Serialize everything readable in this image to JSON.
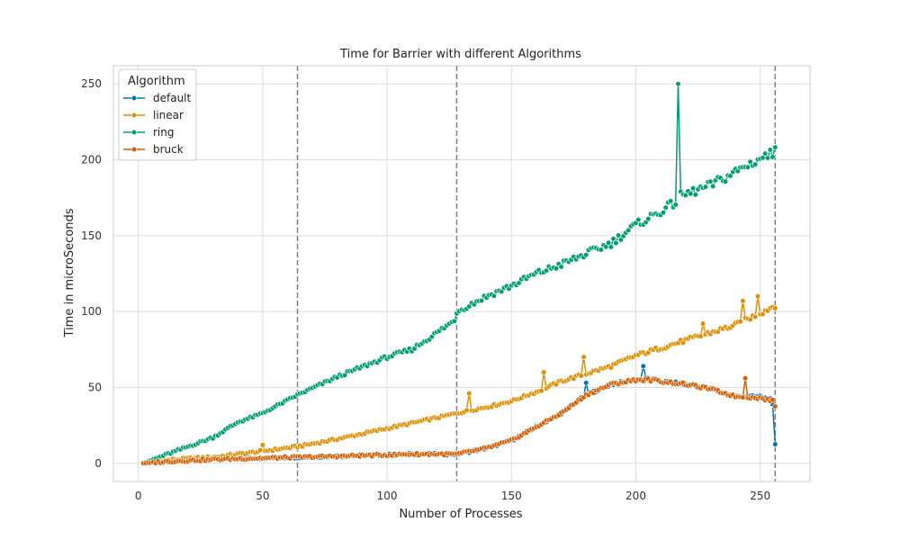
{
  "chart_data": {
    "type": "line",
    "title": "Time for Barrier with different Algorithms",
    "xlabel": "Number of Processes",
    "ylabel": "Time in microSeconds",
    "xlim": [
      -10,
      270
    ],
    "ylim": [
      -12,
      262
    ],
    "xticks": [
      0,
      50,
      100,
      150,
      200,
      250
    ],
    "yticks": [
      0,
      50,
      100,
      150,
      200,
      250
    ],
    "grid": true,
    "legend": {
      "title": "Algorithm",
      "placement": "top-left"
    },
    "vlines": {
      "x": [
        64,
        128,
        256
      ],
      "style": "dashed",
      "color": "#808080"
    },
    "x_range": [
      2,
      256
    ],
    "series": [
      {
        "name": "default",
        "color": "#0173b2",
        "anchors": [
          [
            2,
            0
          ],
          [
            10,
            1
          ],
          [
            30,
            2.5
          ],
          [
            64,
            4
          ],
          [
            100,
            5.5
          ],
          [
            110,
            6
          ],
          [
            128,
            6
          ],
          [
            140,
            10
          ],
          [
            150,
            15
          ],
          [
            160,
            24
          ],
          [
            170,
            33
          ],
          [
            180,
            45
          ],
          [
            190,
            52
          ],
          [
            200,
            55
          ],
          [
            205,
            56
          ],
          [
            210,
            54
          ],
          [
            220,
            52
          ],
          [
            230,
            49
          ],
          [
            240,
            44
          ],
          [
            250,
            44
          ],
          [
            254,
            42
          ],
          [
            255,
            38
          ],
          [
            256,
            12
          ]
        ],
        "spikes": [
          [
            180,
            53
          ],
          [
            203,
            64
          ]
        ]
      },
      {
        "name": "linear",
        "color": "#de8f05",
        "anchors": [
          [
            2,
            0
          ],
          [
            10,
            2
          ],
          [
            30,
            4
          ],
          [
            50,
            8
          ],
          [
            64,
            11
          ],
          [
            80,
            16
          ],
          [
            100,
            23
          ],
          [
            120,
            30
          ],
          [
            128,
            33
          ],
          [
            140,
            37
          ],
          [
            150,
            41
          ],
          [
            160,
            47
          ],
          [
            170,
            54
          ],
          [
            180,
            59
          ],
          [
            190,
            64
          ],
          [
            200,
            71
          ],
          [
            210,
            76
          ],
          [
            220,
            81
          ],
          [
            230,
            86
          ],
          [
            240,
            91
          ],
          [
            250,
            99
          ],
          [
            256,
            104
          ]
        ],
        "spikes": [
          [
            50,
            12
          ],
          [
            133,
            46
          ],
          [
            163,
            60
          ],
          [
            179,
            70
          ],
          [
            227,
            92
          ],
          [
            243,
            107
          ],
          [
            249,
            110
          ]
        ]
      },
      {
        "name": "ring",
        "color": "#029e73",
        "anchors": [
          [
            2,
            0
          ],
          [
            10,
            5
          ],
          [
            30,
            17
          ],
          [
            40,
            27
          ],
          [
            50,
            33
          ],
          [
            64,
            45
          ],
          [
            80,
            57
          ],
          [
            100,
            70
          ],
          [
            110,
            75
          ],
          [
            120,
            86
          ],
          [
            127,
            94
          ],
          [
            128,
            100
          ],
          [
            140,
            110
          ],
          [
            150,
            117
          ],
          [
            160,
            125
          ],
          [
            170,
            131
          ],
          [
            180,
            138
          ],
          [
            190,
            145
          ],
          [
            200,
            157
          ],
          [
            210,
            166
          ],
          [
            216,
            172
          ],
          [
            218,
            176
          ],
          [
            230,
            183
          ],
          [
            240,
            192
          ],
          [
            250,
            201
          ],
          [
            255,
            204
          ],
          [
            256,
            210
          ]
        ],
        "spikes": [
          [
            217,
            250
          ]
        ]
      },
      {
        "name": "bruck",
        "color": "#d55e00",
        "anchors": [
          [
            2,
            0
          ],
          [
            10,
            1
          ],
          [
            30,
            2.5
          ],
          [
            64,
            4
          ],
          [
            100,
            5.5
          ],
          [
            110,
            6
          ],
          [
            128,
            6
          ],
          [
            140,
            10
          ],
          [
            150,
            15
          ],
          [
            160,
            24
          ],
          [
            170,
            33
          ],
          [
            180,
            45
          ],
          [
            190,
            52
          ],
          [
            200,
            55
          ],
          [
            205,
            55
          ],
          [
            210,
            54
          ],
          [
            220,
            52
          ],
          [
            230,
            49
          ],
          [
            240,
            44
          ],
          [
            250,
            43
          ],
          [
            255,
            41
          ],
          [
            256,
            38
          ]
        ],
        "spikes": [
          [
            244,
            56
          ]
        ]
      }
    ]
  }
}
